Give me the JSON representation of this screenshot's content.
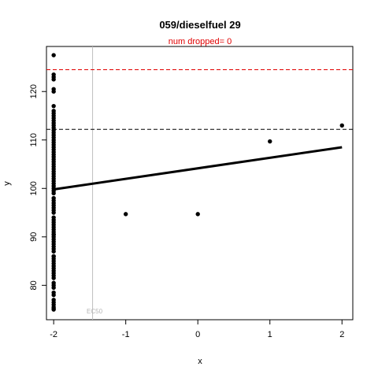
{
  "chart_data": {
    "type": "scatter",
    "title": "059/dieselfuel 29",
    "subtitle": "num dropped= 0",
    "xlabel": "x",
    "ylabel": "y",
    "xlim": [
      -2.1,
      2.15
    ],
    "ylim": [
      72.9,
      129.3
    ],
    "xticks": [
      -2,
      -1,
      0,
      1,
      2
    ],
    "yticks": [
      80,
      90,
      100,
      110,
      120
    ],
    "points": {
      "x": [
        -2,
        -2,
        -2,
        -2,
        -2,
        -2,
        -2,
        -2,
        -2,
        -2,
        -2,
        -2,
        -2,
        -2,
        -2,
        -2,
        -2,
        -2,
        -2,
        -2,
        -2,
        -2,
        -2,
        -2,
        -2,
        -2,
        -2,
        -2,
        -2,
        -2,
        -2,
        -2,
        -2,
        -2,
        -2,
        -2,
        -2,
        -2,
        -2,
        -2,
        -2,
        -2,
        -2,
        -2,
        -2,
        -2,
        -2,
        -2,
        -2,
        -2,
        -2,
        -2,
        -2,
        -2,
        -2,
        -2,
        -2,
        -2,
        -2,
        -2,
        -2,
        -2,
        -2,
        -2,
        -2,
        -2,
        -2,
        -2,
        -2,
        -2,
        -2,
        -2,
        -2,
        -2,
        -2,
        -2,
        -2,
        -2,
        -2,
        -2,
        -2,
        -2,
        -2,
        -2,
        -2,
        -2,
        -2,
        -1,
        0,
        1,
        2
      ],
      "y": [
        127.5,
        123.5,
        123.0,
        122.5,
        120.5,
        120.0,
        117.0,
        116.0,
        115.5,
        115.0,
        114.5,
        114.0,
        113.5,
        113.0,
        112.5,
        112.0,
        111.5,
        111.0,
        110.5,
        110.0,
        109.5,
        109.0,
        108.5,
        108.0,
        107.5,
        107.0,
        106.5,
        106.0,
        105.5,
        105.0,
        104.5,
        104.0,
        103.5,
        103.0,
        102.5,
        102.0,
        101.5,
        101.0,
        100.5,
        100.0,
        99.5,
        99.0,
        98.0,
        97.5,
        97.0,
        96.5,
        96.0,
        95.5,
        95.0,
        94.0,
        93.5,
        93.0,
        92.5,
        92.0,
        91.5,
        91.0,
        90.5,
        90.0,
        89.5,
        89.0,
        88.5,
        88.0,
        87.5,
        87.0,
        86.0,
        85.5,
        85.0,
        84.5,
        84.0,
        83.5,
        83.0,
        82.5,
        82.0,
        81.5,
        80.5,
        80.0,
        79.5,
        78.5,
        78.0,
        77.0,
        76.5,
        76.0,
        75.5,
        75.2,
        75.0,
        86.0,
        90.5,
        94.7,
        94.7,
        109.7,
        113.0
      ]
    },
    "fit_line": {
      "x": [
        -2,
        2
      ],
      "y": [
        99.8,
        108.5
      ]
    },
    "hlines": [
      {
        "y": 124.5,
        "color": "#e00000",
        "style": "dashed"
      },
      {
        "y": 112.2,
        "color": "#000000",
        "style": "dashed"
      }
    ],
    "vline": {
      "x": -1.46,
      "color": "#bebebe",
      "label": "EC50"
    },
    "grid": false,
    "legend": "none"
  }
}
